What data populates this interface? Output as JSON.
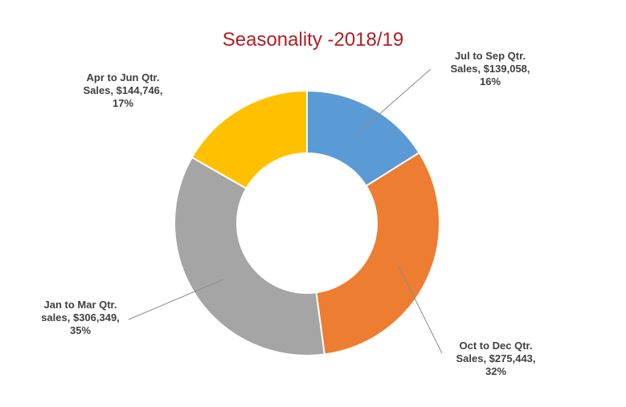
{
  "chart_data": {
    "type": "pie",
    "title": "Seasonality -2018/19",
    "style": "donut",
    "categories": [
      "Jul to Sep Qtr.",
      "Oct to Dec Qtr.",
      "Jan to Mar Qtr.",
      "Apr to Jun Qtr."
    ],
    "values": [
      139058,
      275443,
      306349,
      144746
    ],
    "percents": [
      "16%",
      "32%",
      "35%",
      "17%"
    ],
    "colors": [
      "#5b9bd5",
      "#ed7d31",
      "#a5a5a5",
      "#ffc000"
    ],
    "labels": [
      {
        "line1": "Jul to Sep Qtr.",
        "line2": "Sales, $139,058,",
        "line3": "16%"
      },
      {
        "line1": "Oct to Dec Qtr.",
        "line2": "Sales, $275,443,",
        "line3": "32%"
      },
      {
        "line1": "Jan to Mar Qtr.",
        "line2": "sales, $306,349,",
        "line3": "35%"
      },
      {
        "line1": "Apr to Jun Qtr.",
        "line2": "Sales, $144,746,",
        "line3": "17%"
      }
    ],
    "legend": "none"
  }
}
